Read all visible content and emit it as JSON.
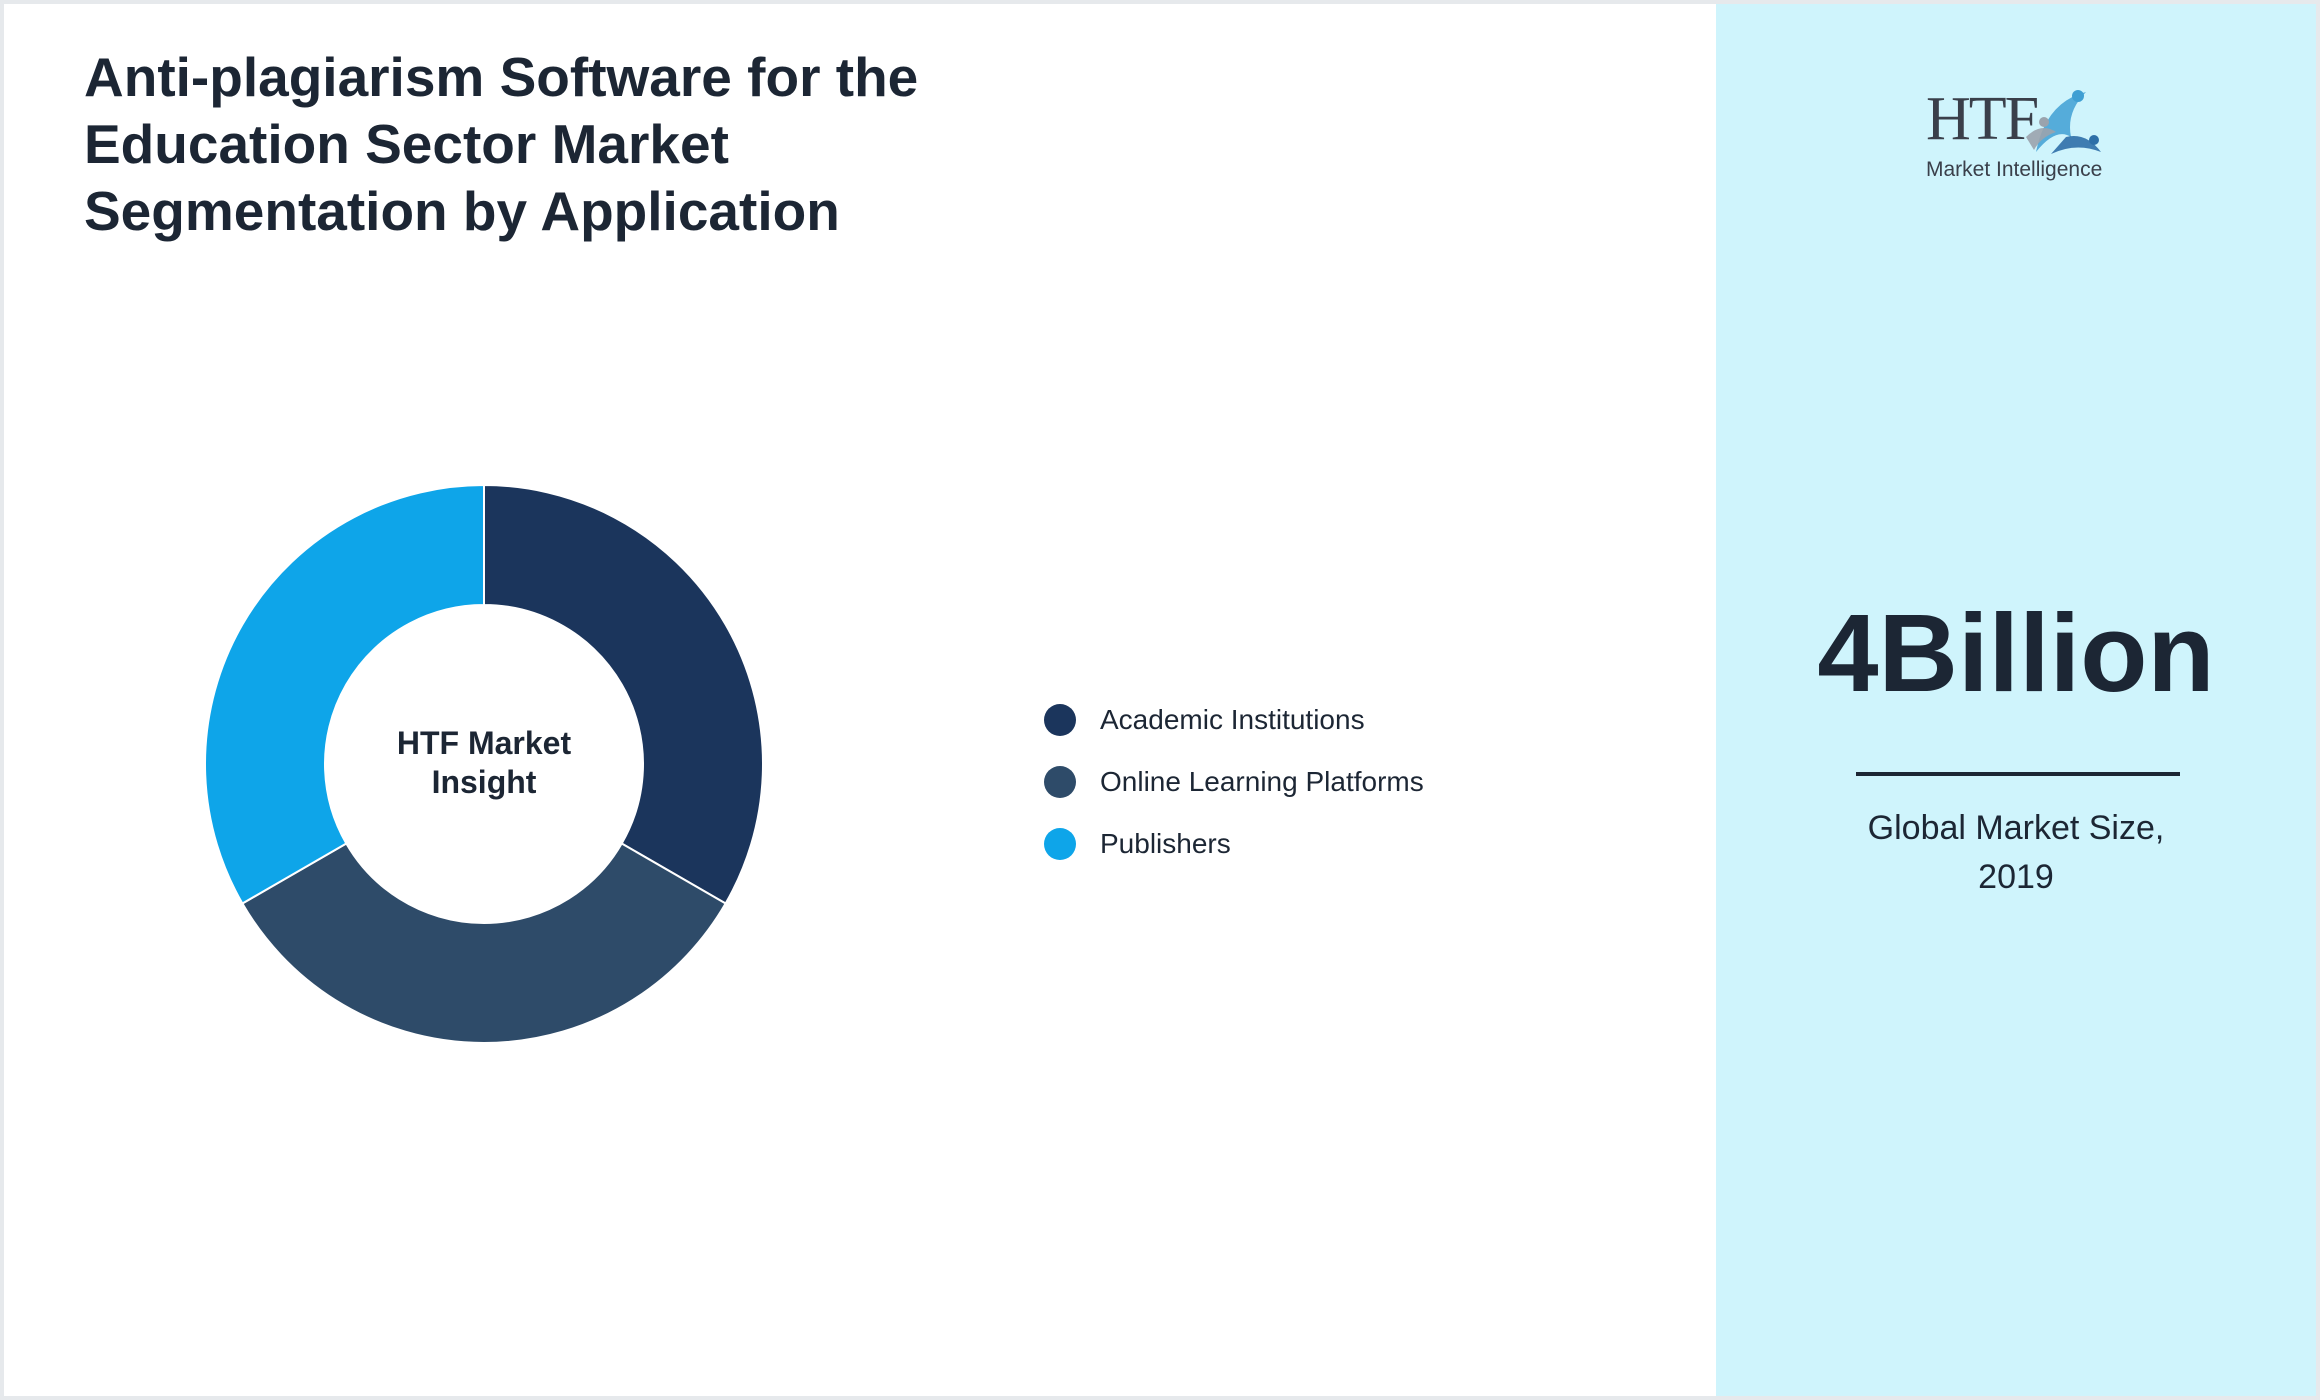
{
  "chart_data": {
    "type": "pie",
    "subtype": "donut",
    "title": "Anti-plagiarism Software for the Education Sector Market Segmentation by Application",
    "center_label": [
      "HTF Market",
      "Insight"
    ],
    "categories": [
      "Academic Institutions",
      "Online Learning Platforms",
      "Publishers"
    ],
    "values": [
      33.3,
      33.3,
      33.3
    ],
    "colors": [
      "#1b355c",
      "#2e4b69",
      "#0ea5e9"
    ],
    "legend_position": "right"
  },
  "logo": {
    "name": "HTF",
    "subtitle": "Market Intelligence"
  },
  "metric": {
    "value": "4Billion",
    "label_line1": "Global Market Size,",
    "label_line2": "2019"
  }
}
